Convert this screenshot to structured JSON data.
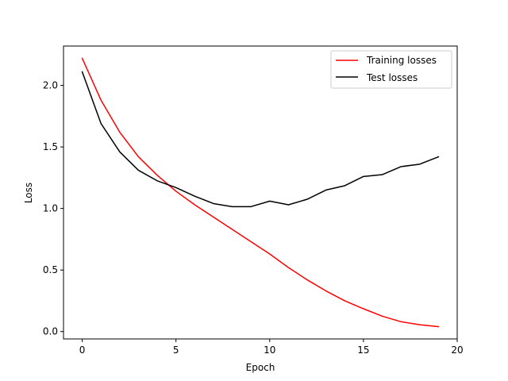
{
  "chart_data": {
    "type": "line",
    "title": "",
    "xlabel": "Epoch",
    "ylabel": "Loss",
    "xlim": [
      -1,
      20
    ],
    "ylim": [
      -0.06,
      2.32
    ],
    "xticks": [
      0,
      5,
      10,
      15,
      20
    ],
    "yticks": [
      0.0,
      0.5,
      1.0,
      1.5,
      2.0
    ],
    "xtick_labels": [
      "0",
      "5",
      "10",
      "15",
      "20"
    ],
    "ytick_labels": [
      "0.0",
      "0.5",
      "1.0",
      "1.5",
      "2.0"
    ],
    "grid": false,
    "legend_position": "top-right",
    "x": [
      0,
      1,
      2,
      3,
      4,
      5,
      6,
      7,
      8,
      9,
      10,
      11,
      12,
      13,
      14,
      15,
      16,
      17,
      18,
      19
    ],
    "series": [
      {
        "name": "Training losses",
        "color": "#ff0000",
        "values": [
          2.22,
          1.88,
          1.62,
          1.42,
          1.27,
          1.14,
          1.03,
          0.93,
          0.83,
          0.73,
          0.63,
          0.52,
          0.42,
          0.33,
          0.25,
          0.185,
          0.125,
          0.08,
          0.055,
          0.04
        ]
      },
      {
        "name": "Test losses",
        "color": "#000000",
        "values": [
          2.11,
          1.69,
          1.46,
          1.31,
          1.225,
          1.17,
          1.1,
          1.04,
          1.015,
          1.015,
          1.06,
          1.03,
          1.075,
          1.15,
          1.185,
          1.26,
          1.275,
          1.34,
          1.36,
          1.42
        ]
      }
    ]
  }
}
